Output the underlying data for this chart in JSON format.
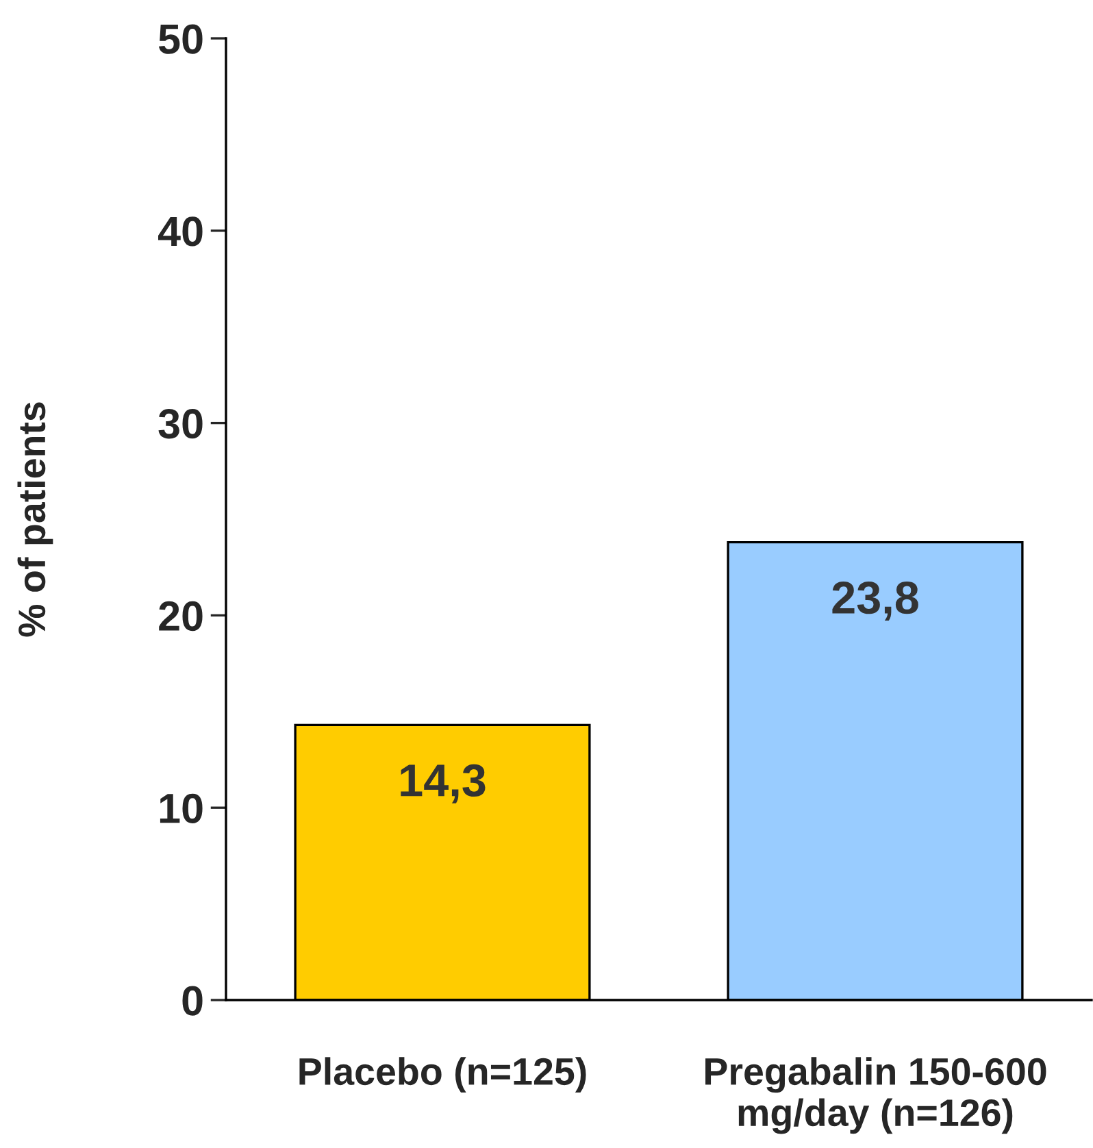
{
  "chart_data": {
    "type": "bar",
    "ylabel": "% of patients",
    "categories": [
      "Placebo (n=125)",
      "Pregabalin 150-600\nmg/day (n=126)"
    ],
    "values": [
      14.3,
      23.8
    ],
    "colors": [
      "#ffcc00",
      "#99ccff"
    ],
    "value_labels": [
      "14,3",
      "23,8"
    ],
    "ylim": [
      0,
      50
    ],
    "yticks": [
      0,
      10,
      20,
      30,
      40,
      50
    ],
    "grid": false,
    "legend": false
  }
}
